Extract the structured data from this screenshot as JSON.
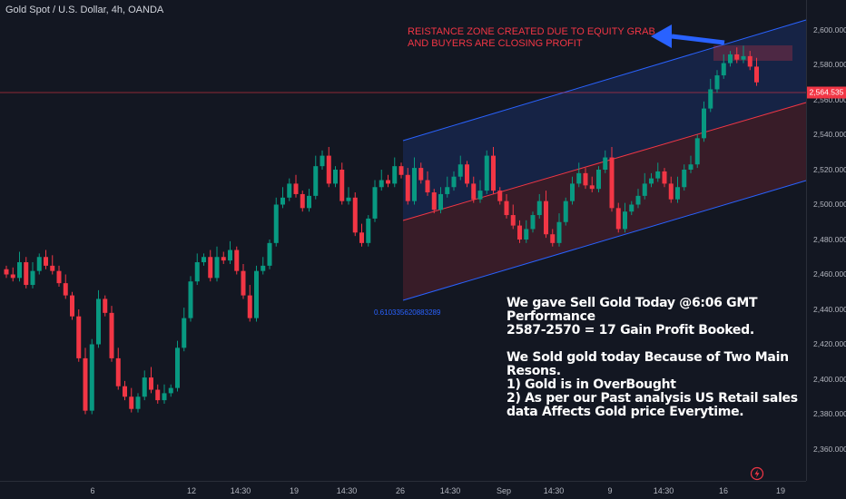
{
  "header": {
    "symbol_title": "Gold Spot / U.S. Dollar, 4h, OANDA"
  },
  "price_axis": {
    "ticks": [
      "2,600.000",
      "2,580.000",
      "2,560.000",
      "2,540.000",
      "2,520.000",
      "2,500.000",
      "2,480.000",
      "2,460.000",
      "2,440.000",
      "2,420.000",
      "2,400.000",
      "2,380.000",
      "2,360.000"
    ],
    "current_price_label": "2,564.535"
  },
  "time_axis": {
    "ticks": [
      "6",
      "12",
      "14:30",
      "19",
      "14:30",
      "26",
      "14:30",
      "Sep",
      "14:30",
      "9",
      "14:30",
      "16",
      "19"
    ]
  },
  "annotations": {
    "resistance_line1": "REISTANCE ZONE CREATED DUE TO EQUITY GRAB",
    "resistance_line2": "AND BUYERS ARE CLOSING PROFIT",
    "fib_level": "0.610335620883289"
  },
  "note": {
    "line1": "We gave Sell Gold Today @6:06 GMT",
    "line2": "Performance",
    "line3": "2587-2570 = 17 Gain Profit Booked.",
    "line4": "We Sold gold today Because of Two Main",
    "line5": "Resons.",
    "line6": "1) Gold is in OverBought",
    "line7": "2) As per our Past analysis US Retail sales",
    "line8": "data Affects Gold price Everytime."
  },
  "icons": {
    "alert": "lightning-alert-icon"
  },
  "colors": {
    "background": "#131722",
    "up": "#089981",
    "down": "#f23645",
    "channel": "#2962ff",
    "annotation": "#f23645"
  },
  "chart_data": {
    "type": "candlestick",
    "symbol": "XAUUSD",
    "timeframe": "4h",
    "ylim": [
      2355,
      2608
    ],
    "current_price": 2564.535,
    "channel": {
      "upper": [
        [
          2536,
          2604
        ],
        [
          2492,
          2558
        ]
      ],
      "lower": [
        [
          2492,
          2558
        ],
        [
          2446,
          2513
        ]
      ]
    },
    "resistance_zone": [
      2583,
      2590
    ],
    "candles_close": [
      2460,
      2458,
      2467,
      2454,
      2462,
      2470,
      2465,
      2462,
      2455,
      2448,
      2436,
      2412,
      2382,
      2420,
      2446,
      2438,
      2412,
      2396,
      2390,
      2383,
      2390,
      2401,
      2394,
      2388,
      2392,
      2395,
      2418,
      2435,
      2456,
      2467,
      2470,
      2458,
      2470,
      2468,
      2474,
      2462,
      2448,
      2435,
      2462,
      2465,
      2478,
      2500,
      2504,
      2512,
      2506,
      2498,
      2505,
      2522,
      2528,
      2512,
      2520,
      2502,
      2504,
      2484,
      2478,
      2492,
      2510,
      2514,
      2512,
      2522,
      2517,
      2502,
      2521,
      2514,
      2507,
      2497,
      2506,
      2510,
      2516,
      2523,
      2512,
      2503,
      2508,
      2528,
      2508,
      2502,
      2494,
      2488,
      2480,
      2486,
      2494,
      2502,
      2483,
      2478,
      2490,
      2502,
      2512,
      2518,
      2511,
      2509,
      2520,
      2527,
      2498,
      2486,
      2496,
      2500,
      2505,
      2512,
      2515,
      2519,
      2512,
      2503,
      2510,
      2520,
      2523,
      2538,
      2555,
      2566,
      2574,
      2581,
      2586,
      2583,
      2585,
      2579,
      2570
    ]
  }
}
